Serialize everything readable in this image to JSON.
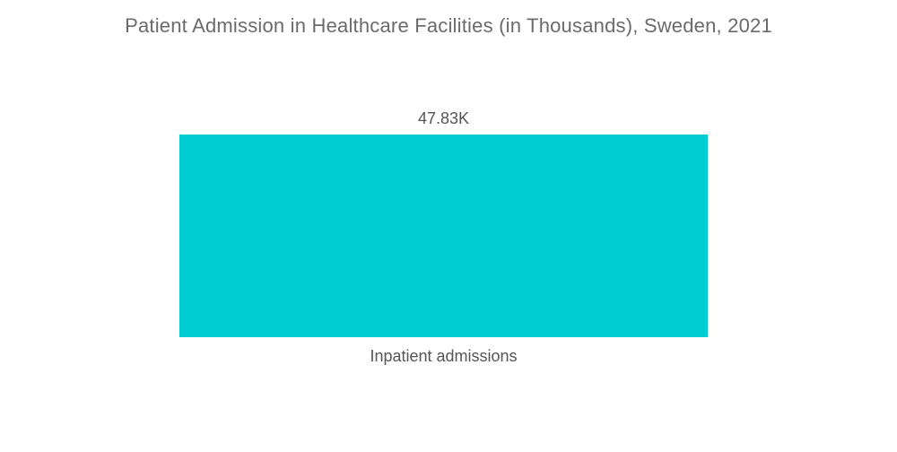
{
  "chart_data": {
    "type": "bar",
    "title": "Patient Admission in Healthcare Facilities (in Thousands), Sweden, 2021",
    "categories": [
      "Inpatient admissions"
    ],
    "values": [
      47.83
    ],
    "data_labels": [
      "47.83K"
    ],
    "xlabel": "",
    "ylabel": "",
    "ylim": [
      0,
      47.83
    ],
    "grid": false,
    "legend": "none",
    "bar_color": "#00CDD1"
  }
}
